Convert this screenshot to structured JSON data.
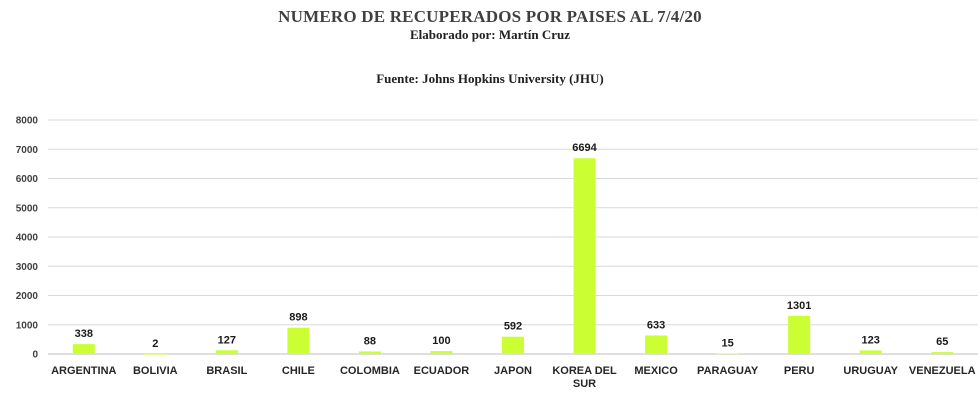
{
  "chart_data": {
    "type": "bar",
    "title": "NUMERO DE RECUPERADOS POR PAISES AL 7/4/20",
    "subtitle": "Elaborado por: Martín Cruz",
    "source": "Fuente: Johns Hopkins University (JHU)",
    "categories": [
      "ARGENTINA",
      "BOLIVIA",
      "BRASIL",
      "CHILE",
      "COLOMBIA",
      "ECUADOR",
      "JAPON",
      "KOREA DEL SUR",
      "MEXICO",
      "PARAGUAY",
      "PERU",
      "URUGUAY",
      "VENEZUELA"
    ],
    "values": [
      338,
      2,
      127,
      898,
      88,
      100,
      592,
      6694,
      633,
      15,
      1301,
      123,
      65
    ],
    "ylim": [
      0,
      8000
    ],
    "yticks": [
      0,
      1000,
      2000,
      3000,
      4000,
      5000,
      6000,
      7000,
      8000
    ],
    "grid": true,
    "legend": "none",
    "bar_color": "#ccff33",
    "grid_color": "#d9d9d9"
  }
}
